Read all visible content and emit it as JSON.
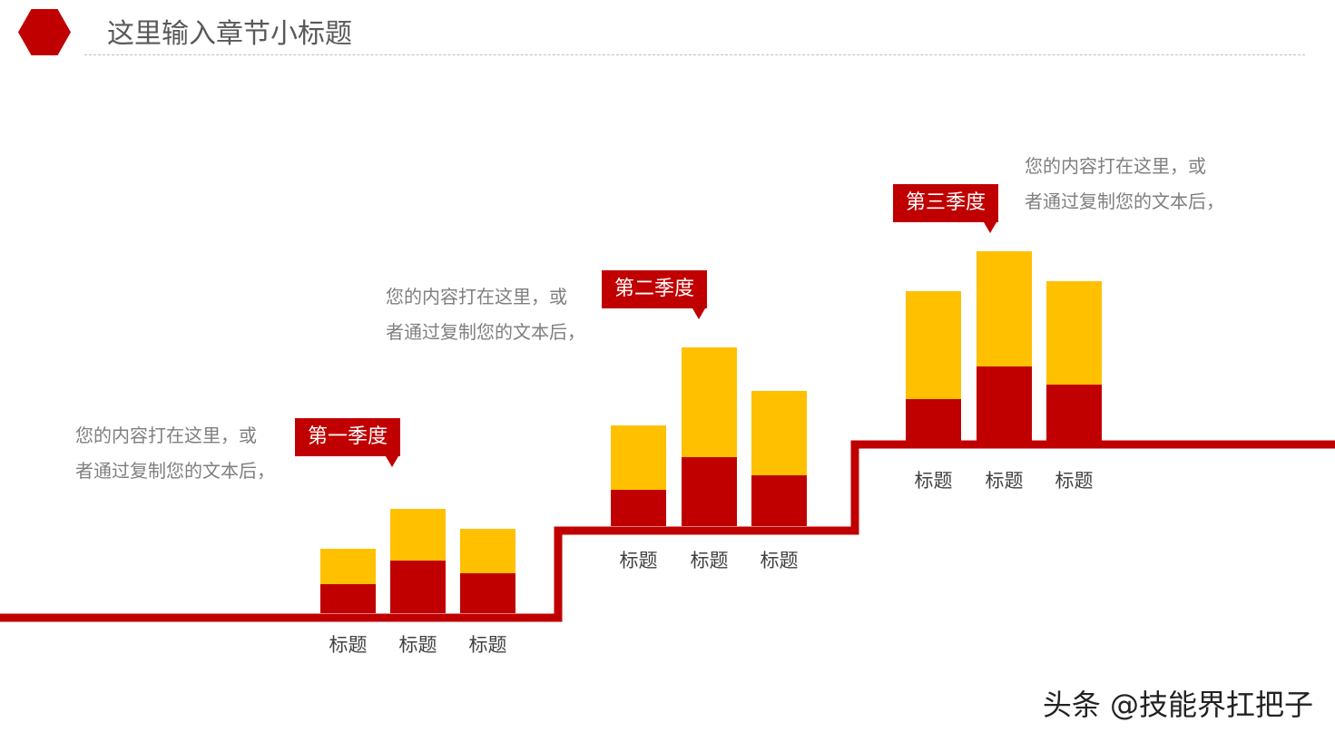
{
  "header": {
    "title": "这里输入章节小标题"
  },
  "quarters": [
    {
      "tag": "第一季度",
      "desc_line1": "您的内容打在这里，或",
      "desc_line2": "者通过复制您的文本后，"
    },
    {
      "tag": "第二季度",
      "desc_line1": "您的内容打在这里，或",
      "desc_line2": "者通过复制您的文本后，"
    },
    {
      "tag": "第三季度",
      "desc_line1": "您的内容打在这里，或",
      "desc_line2": "者通过复制您的文本后，"
    }
  ],
  "chart_data": {
    "type": "bar",
    "stacked": true,
    "groups": [
      "第一季度",
      "第二季度",
      "第三季度"
    ],
    "categories": [
      [
        "标题",
        "标题",
        "标题"
      ],
      [
        "标题",
        "标题",
        "标题"
      ],
      [
        "标题",
        "标题",
        "标题"
      ]
    ],
    "series": [
      {
        "color": "#c00000",
        "values": [
          [
            32,
            58,
            44
          ],
          [
            40,
            76,
            56
          ],
          [
            46,
            82,
            62
          ]
        ]
      },
      {
        "color": "#ffc000",
        "values": [
          [
            39,
            57,
            49
          ],
          [
            71,
            121,
            93
          ],
          [
            119,
            127,
            114
          ]
        ]
      }
    ],
    "axes": "none",
    "grid": false
  },
  "colors": {
    "accent": "#c00000",
    "secondary": "#ffc000"
  },
  "watermark": "头条 @技能界扛把子"
}
